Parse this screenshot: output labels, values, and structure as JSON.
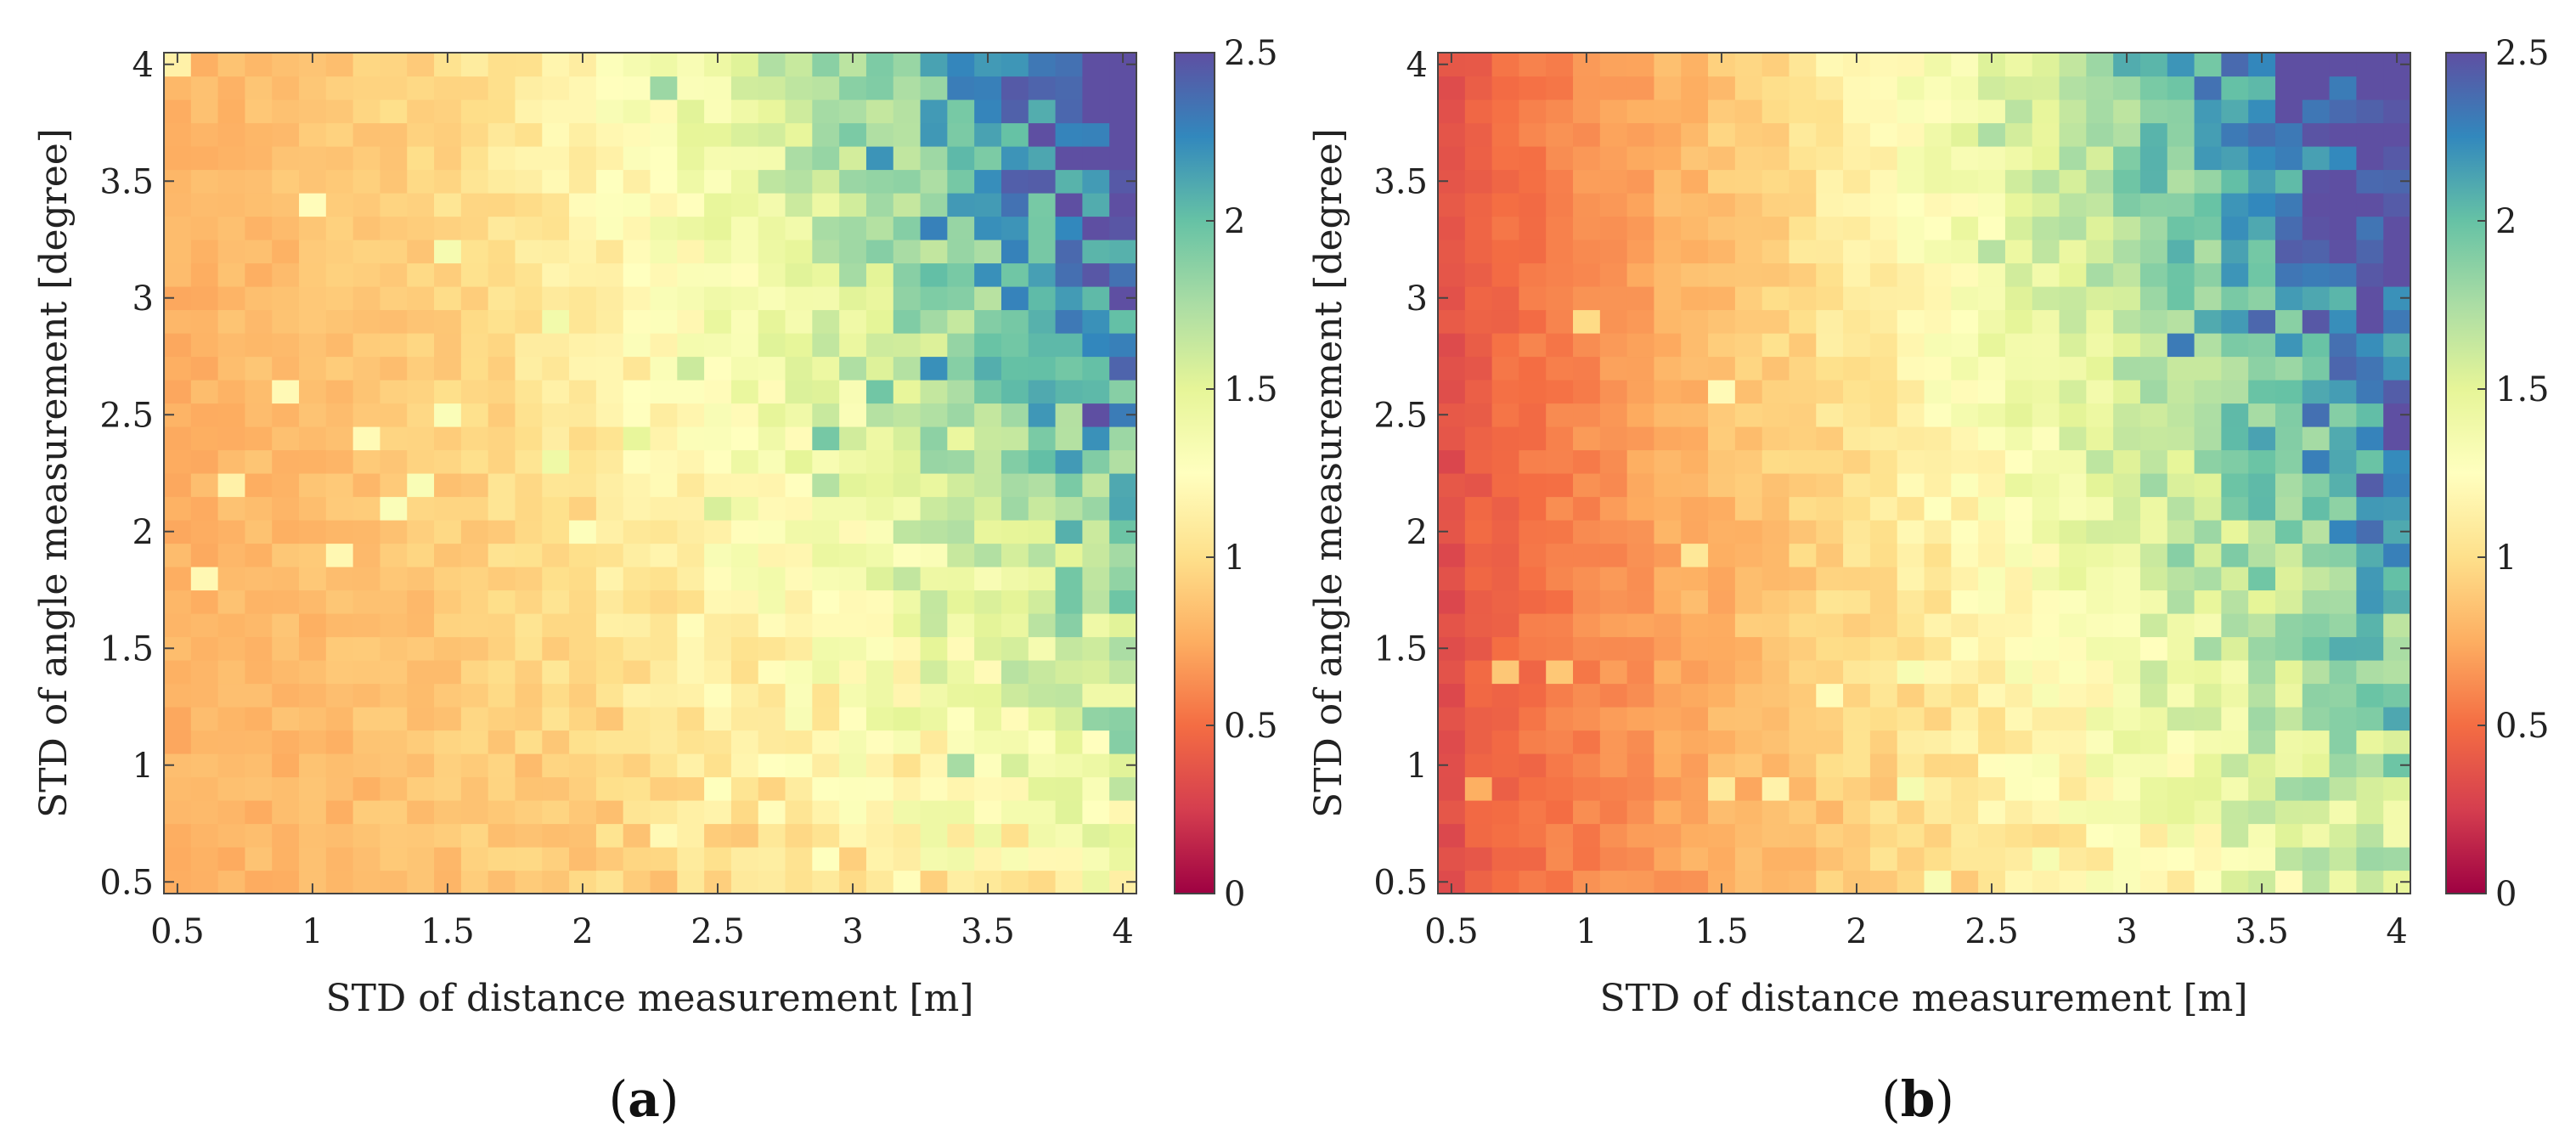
{
  "chart_data": [
    {
      "type": "heatmap",
      "panel_label": "a",
      "paren_open": "(",
      "paren_close": ")",
      "title": "",
      "xlabel": "STD of distance measurement [m]",
      "ylabel": "STD of angle measurement [degree]",
      "xlim": [
        0.45,
        4.05
      ],
      "ylim": [
        0.45,
        4.05
      ],
      "x_ticks": [
        0.5,
        1,
        1.5,
        2,
        2.5,
        3,
        3.5,
        4
      ],
      "y_ticks": [
        0.5,
        1,
        1.5,
        2,
        2.5,
        3,
        3.5,
        4
      ],
      "x_tick_labels": [
        "0.5",
        "1",
        "1.5",
        "2",
        "2.5",
        "3",
        "3.5",
        "4"
      ],
      "y_tick_labels": [
        "0.5",
        "1",
        "1.5",
        "2",
        "2.5",
        "3",
        "3.5",
        "4"
      ],
      "grid": {
        "x_start": 0.5,
        "x_step": 0.1,
        "nx": 36,
        "y_start": 0.5,
        "y_step": 0.1,
        "ny": 36
      },
      "value_model": "approximate: z rises from ~0.78 at small distance STD to ~2.3 at large distance STD and large angle STD",
      "colorbar": {
        "colormap": "Spectral (red-yellow-green-blue)",
        "range": [
          0,
          2.5
        ],
        "ticks": [
          0,
          0.5,
          1,
          1.5,
          2,
          2.5
        ],
        "tick_labels": [
          "0",
          "0.5",
          "1",
          "1.5",
          "2",
          "2.5"
        ]
      }
    },
    {
      "type": "heatmap",
      "panel_label": "b",
      "paren_open": "(",
      "paren_close": ")",
      "title": "",
      "xlabel": "STD of distance measurement [m]",
      "ylabel": "STD of angle measurement [degree]",
      "xlim": [
        0.45,
        4.05
      ],
      "ylim": [
        0.45,
        4.05
      ],
      "x_ticks": [
        0.5,
        1,
        1.5,
        2,
        2.5,
        3,
        3.5,
        4
      ],
      "y_ticks": [
        0.5,
        1,
        1.5,
        2,
        2.5,
        3,
        3.5,
        4
      ],
      "x_tick_labels": [
        "0.5",
        "1",
        "1.5",
        "2",
        "2.5",
        "3",
        "3.5",
        "4"
      ],
      "y_tick_labels": [
        "0.5",
        "1",
        "1.5",
        "2",
        "2.5",
        "3",
        "3.5",
        "4"
      ],
      "grid": {
        "x_start": 0.5,
        "x_step": 0.1,
        "nx": 36,
        "y_start": 0.5,
        "y_step": 0.1,
        "ny": 36
      },
      "value_model": "approximate: z rises from ~0.35 at small distance STD to ~2.4 at large distance STD and large angle STD",
      "colorbar": {
        "colormap": "Spectral (red-yellow-green-blue)",
        "range": [
          0,
          2.5
        ],
        "ticks": [
          0,
          0.5,
          1,
          1.5,
          2,
          2.5
        ],
        "tick_labels": [
          "0",
          "0.5",
          "1",
          "1.5",
          "2",
          "2.5"
        ]
      }
    }
  ],
  "colormap_stops": [
    {
      "v": 0.0,
      "color": "#9e0142"
    },
    {
      "v": 0.25,
      "color": "#d53e4f"
    },
    {
      "v": 0.5,
      "color": "#f46d43"
    },
    {
      "v": 0.75,
      "color": "#fdae61"
    },
    {
      "v": 1.0,
      "color": "#fee08b"
    },
    {
      "v": 1.25,
      "color": "#ffffbf"
    },
    {
      "v": 1.5,
      "color": "#e6f598"
    },
    {
      "v": 1.75,
      "color": "#abdda4"
    },
    {
      "v": 2.0,
      "color": "#66c2a5"
    },
    {
      "v": 2.25,
      "color": "#3288bd"
    },
    {
      "v": 2.5,
      "color": "#5e4fa2"
    }
  ]
}
